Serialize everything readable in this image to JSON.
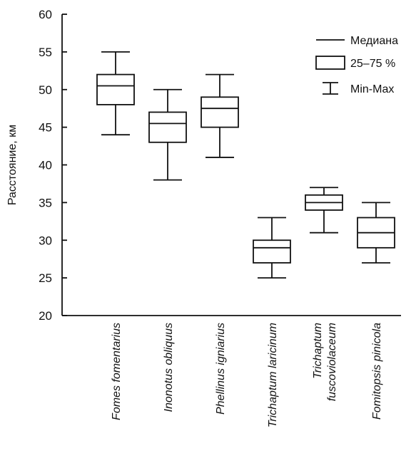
{
  "chart_data": {
    "type": "box",
    "ylabel": "Расстояние, км",
    "xlabel": "",
    "ylim": [
      20,
      60
    ],
    "yticks": [
      20,
      25,
      30,
      35,
      40,
      45,
      50,
      55,
      60
    ],
    "grid": false,
    "categories": [
      [
        "Fomes fomentarius"
      ],
      [
        "Inonotus obliquus"
      ],
      [
        "Phellinus igniarius"
      ],
      [
        "Trichaptum laricinum"
      ],
      [
        "Trichaptum",
        "fuscoviolaceum"
      ],
      [
        "Fomitopsis pinicola"
      ]
    ],
    "boxes": [
      {
        "min": 44,
        "q1": 48,
        "median": 50.5,
        "q3": 52,
        "max": 55
      },
      {
        "min": 38,
        "q1": 43,
        "median": 45.5,
        "q3": 47,
        "max": 50
      },
      {
        "min": 41,
        "q1": 45,
        "median": 47.5,
        "q3": 49,
        "max": 52
      },
      {
        "min": 25,
        "q1": 27,
        "median": 29,
        "q3": 30,
        "max": 33
      },
      {
        "min": 31,
        "q1": 34,
        "median": 35,
        "q3": 36,
        "max": 37
      },
      {
        "min": 27,
        "q1": 29,
        "median": 31,
        "q3": 33,
        "max": 35
      }
    ],
    "legend": {
      "position": "top-right",
      "entries": [
        {
          "symbol": "median-line",
          "label": "Медиана"
        },
        {
          "symbol": "box",
          "label": "25–75 %"
        },
        {
          "symbol": "whisker",
          "label": "Min-Max"
        }
      ]
    }
  },
  "colors": {
    "stroke": "#111111",
    "box_fill": "#ffffff",
    "background": "#ffffff"
  }
}
